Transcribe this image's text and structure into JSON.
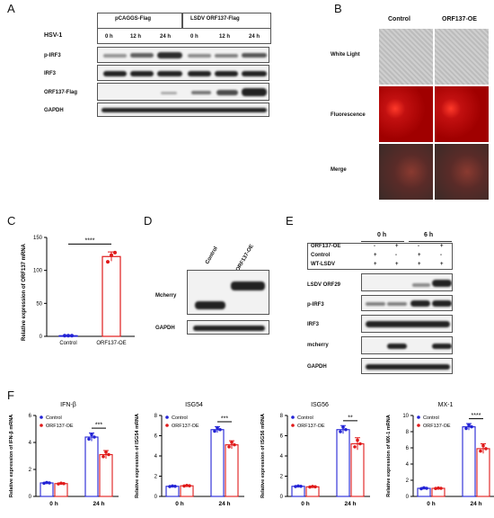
{
  "panels": {
    "A": "A",
    "B": "B",
    "C": "C",
    "D": "D",
    "E": "E",
    "F": "F"
  },
  "panelA": {
    "hsv": "HSV-1",
    "groups": [
      "pCAGGS-Flag",
      "LSDV ORF137-Flag"
    ],
    "times": [
      "0 h",
      "12 h",
      "24 h",
      "0 h",
      "12 h",
      "24 h"
    ],
    "rows": [
      "p-IRF3",
      "IRF3",
      "ORF137-Flag",
      "GAPDH"
    ]
  },
  "panelB": {
    "cols": [
      "Control",
      "ORF137-OE"
    ],
    "rows": [
      "White Light",
      "Fluorescence",
      "Merge"
    ]
  },
  "panelC": {
    "ylabel": "Relative expression of ORF137 mRNA",
    "sig": "****",
    "chart_data": {
      "type": "bar",
      "categories": [
        "Control",
        "ORF137-OE"
      ],
      "values": [
        1,
        121
      ],
      "points": [
        [
          1,
          1,
          1
        ],
        [
          113,
          123,
          127
        ]
      ],
      "errors": [
        0.5,
        7
      ],
      "ylim": [
        0,
        150
      ],
      "yticks": [
        "0",
        "50",
        "100",
        "150"
      ]
    }
  },
  "panelD": {
    "cols": [
      "Control",
      "ORF137-OE"
    ],
    "rows": [
      "Mcherry",
      "GAPDH"
    ]
  },
  "panelE": {
    "times": [
      "0 h",
      "6 h"
    ],
    "conds": [
      {
        "label": "ORF137-OE",
        "vals": [
          "-",
          "+",
          "-",
          "+"
        ]
      },
      {
        "label": "Control",
        "vals": [
          "+",
          "-",
          "+",
          "-"
        ]
      },
      {
        "label": "WT-LSDV",
        "vals": [
          "+",
          "+",
          "+",
          "+"
        ]
      }
    ],
    "rows": [
      "LSDV ORF29",
      "p-IRF3",
      "IRF3",
      "mcherry",
      "GAPDH"
    ]
  },
  "panelF": {
    "xcats": [
      "0 h",
      "24 h"
    ],
    "legend": [
      "Control",
      "ORF137-OE"
    ],
    "colors": {
      "control": "#2323d6",
      "oe": "#e01a1a"
    },
    "charts": [
      {
        "title": "IFN-β",
        "ylabel": "Relative expression of IFN-β mRNA",
        "sig": "***",
        "ymax": 6,
        "yticks": [
          "0",
          "2",
          "4",
          "6"
        ],
        "control": [
          1,
          4.4
        ],
        "oe": [
          0.95,
          3.1
        ],
        "ce": [
          0.05,
          0.3
        ],
        "oe_e": [
          0.05,
          0.3
        ]
      },
      {
        "title": "ISG54",
        "ylabel": "Relative expression of ISG54 mRNA",
        "sig": "***",
        "ymax": 8,
        "yticks": [
          "0",
          "2",
          "4",
          "6",
          "8"
        ],
        "control": [
          1,
          6.6
        ],
        "oe": [
          1.05,
          5.1
        ],
        "ce": [
          0.05,
          0.3
        ],
        "oe_e": [
          0.05,
          0.4
        ]
      },
      {
        "title": "ISG56",
        "ylabel": "Relative expression of ISG56 mRNA",
        "sig": "**",
        "ymax": 8,
        "yticks": [
          "0",
          "2",
          "4",
          "6",
          "8"
        ],
        "control": [
          1,
          6.6
        ],
        "oe": [
          0.95,
          5.2
        ],
        "ce": [
          0.05,
          0.4
        ],
        "oe_e": [
          0.05,
          0.6
        ]
      },
      {
        "title": "MX-1",
        "ylabel": "Relative expression of MX-1 mRNA",
        "sig": "****",
        "ymax": 10,
        "yticks": [
          "0",
          "2",
          "4",
          "6",
          "8",
          "10"
        ],
        "control": [
          1,
          8.6
        ],
        "oe": [
          1.0,
          5.9
        ],
        "ce": [
          0.1,
          0.4
        ],
        "oe_e": [
          0.05,
          0.6
        ]
      }
    ]
  }
}
